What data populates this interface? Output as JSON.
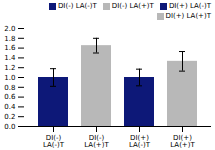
{
  "chart_data": {
    "type": "bar",
    "categories": [
      "DI(-) LA(-)T",
      "DI(-) LA(+)T",
      "DI(+) LA(-)T",
      "DI(+) LA(+)T"
    ],
    "values": [
      1.0,
      1.65,
      1.0,
      1.33
    ],
    "errors": [
      0.18,
      0.15,
      0.17,
      0.2
    ],
    "colors": [
      "#0d1878",
      "#b8b8b8",
      "#0d1878",
      "#b8b8b8"
    ],
    "ylim": [
      0,
      2.0
    ],
    "yticks": [
      {
        "value": 0,
        "label": "0.0"
      },
      0.2,
      0.4,
      0.6,
      0.8,
      {
        "value": 1.0,
        "label": "1.0"
      },
      1.2,
      1.4,
      1.6,
      1.8,
      {
        "value": 2.0,
        "label": "2.0"
      }
    ],
    "grid": false,
    "legend": "upper right"
  }
}
